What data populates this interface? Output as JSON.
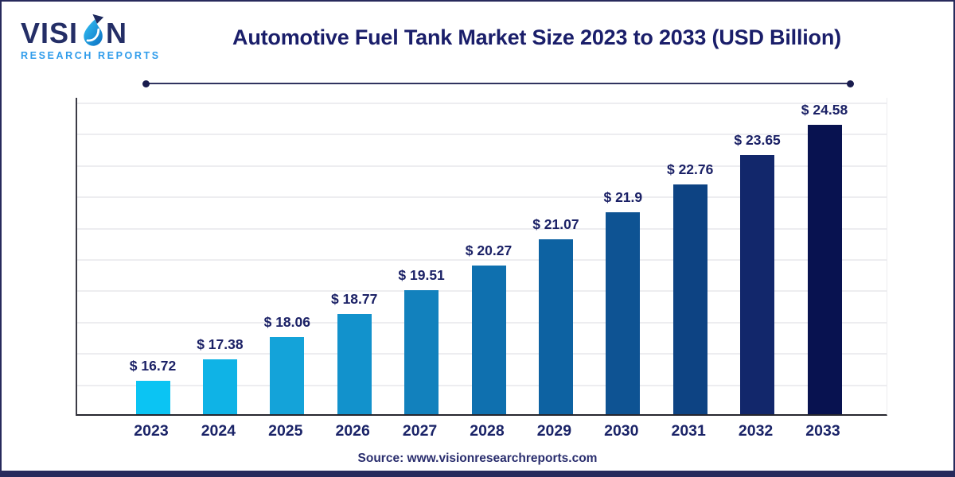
{
  "page": {
    "background": "#ffffff",
    "border_color": "#272a5c"
  },
  "logo": {
    "word_part1": "VISI",
    "word_part2": "N",
    "subtitle": "RESEARCH REPORTS",
    "wordmark_color": "#242e66",
    "subtitle_color": "#2f9ceb"
  },
  "header": {
    "title": "Automotive Fuel Tank Market Size 2023 to 2033 (USD Billion)"
  },
  "chart_data": {
    "type": "bar",
    "title": "Automotive Fuel Tank Market Size 2023 to 2033 (USD Billion)",
    "categories": [
      "2023",
      "2024",
      "2025",
      "2026",
      "2027",
      "2028",
      "2029",
      "2030",
      "2031",
      "2032",
      "2033"
    ],
    "values": [
      16.72,
      17.38,
      18.06,
      18.77,
      19.51,
      20.27,
      21.07,
      21.9,
      22.76,
      23.65,
      24.58
    ],
    "value_labels": [
      "$ 16.72",
      "$ 17.38",
      "$ 18.06",
      "$ 18.77",
      "$ 19.51",
      "$ 20.27",
      "$ 21.07",
      "$ 21.9",
      "$ 22.76",
      "$ 23.65",
      "$ 24.58"
    ],
    "value_prefix": "$",
    "unit": "USD Billion",
    "bar_colors": [
      "#0bc4f3",
      "#0fb3e6",
      "#14a3d9",
      "#1292cc",
      "#1281bd",
      "#0f70af",
      "#0d62a2",
      "#0e5393",
      "#0d4383",
      "#12276b",
      "#081250"
    ],
    "xlabel": "",
    "ylabel": "",
    "y_axis_baseline": 15.7,
    "ylim": [
      15.7,
      25.6
    ],
    "grid": true,
    "gridline_count": 10,
    "y_tick_labels_visible": false,
    "legend": false
  },
  "footer": {
    "source": "Source: www.visionresearchreports.com"
  }
}
